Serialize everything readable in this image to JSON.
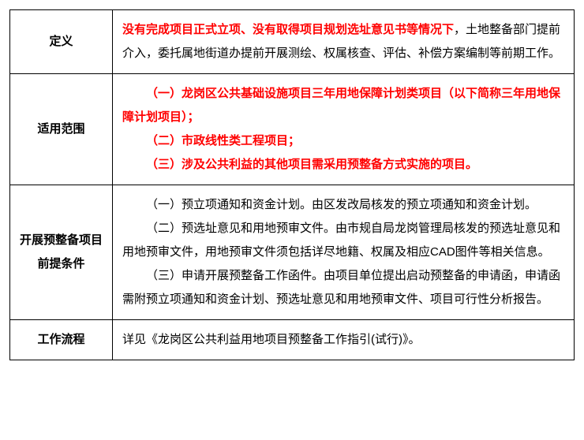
{
  "rows": {
    "r1": {
      "label": "定义",
      "red_part": "没有完成项目正式立项、没有取得项目规划选址意见书等情况下",
      "black_part": "，土地整备部门提前介入，委托属地街道办提前开展测绘、权属核查、评估、补偿方案编制等前期工作。"
    },
    "r2": {
      "label": "适用范围",
      "line1": "（一）龙岗区公共基础设施项目三年用地保障计划类项目（以下简称三年用地保障计划项目）；",
      "line2": "（二）市政线性类工程项目；",
      "line3": "（三）涉及公共利益的其他项目需采用预整备方式实施的项目。"
    },
    "r3": {
      "label": "开展预整备项目前提条件",
      "p1": "（一）预立项通知和资金计划。由区发改局核发的预立项通知和资金计划。",
      "p2": "（二）预选址意见和用地预审文件。由市规自局龙岗管理局核发的预选址意见和用地预审文件，用地预审文件须包括详尽地籍、权属及相应CAD图件等相关信息。",
      "p3": "（三）申请开展预整备工作函件。由项目单位提出启动预整备的申请函，申请函需附预立项通知和资金计划、预选址意见和用地预审文件、项目可行性分析报告。"
    },
    "r4": {
      "label": "工作流程",
      "text": "详见《龙岗区公共利益用地项目预整备工作指引(试行)》。"
    }
  }
}
